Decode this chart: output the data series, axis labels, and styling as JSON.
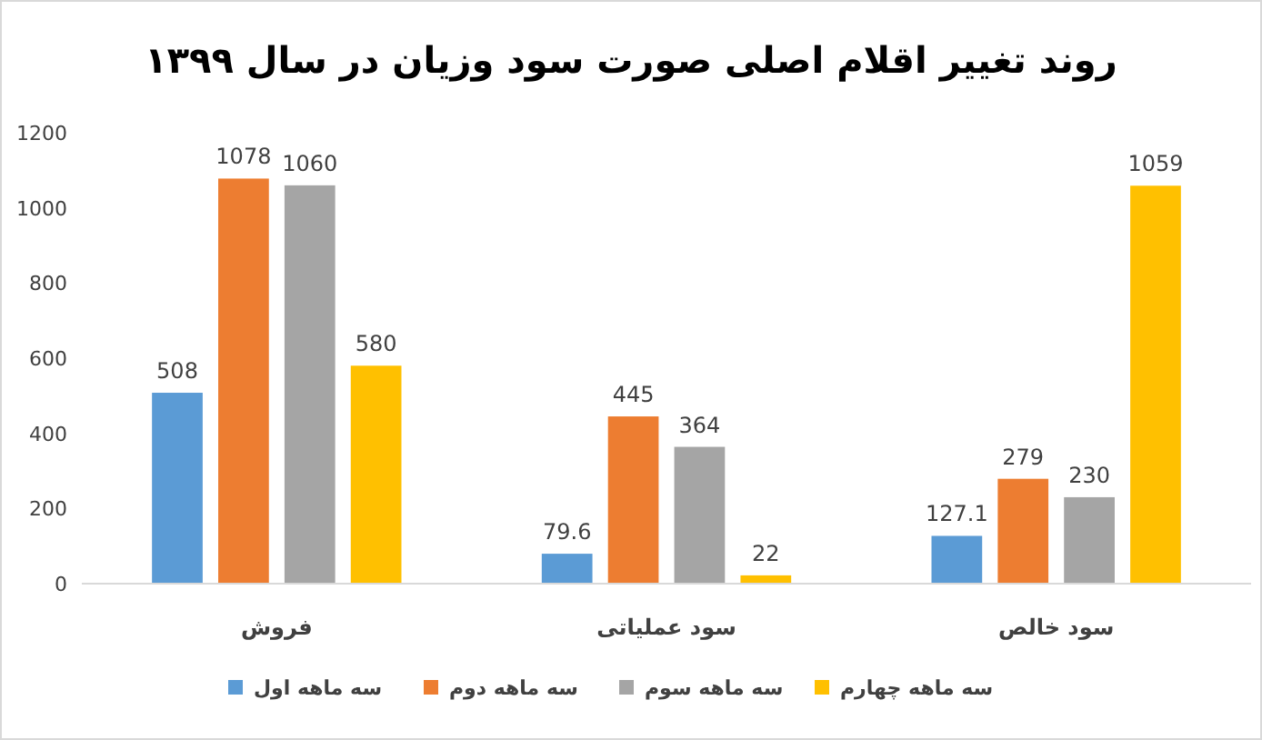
{
  "chart_data": {
    "type": "bar",
    "title": "روند تغییر اقلام اصلی صورت سود وزیان در سال ۱۳۹۹",
    "categories": [
      "فروش",
      "سود عملیاتی",
      "سود خالص"
    ],
    "series": [
      {
        "name": "سه ماهه اول",
        "color": "#5b9bd5",
        "values": [
          508,
          79.6,
          127.1
        ]
      },
      {
        "name": "سه ماهه دوم",
        "color": "#ed7d31",
        "values": [
          1078,
          445,
          279
        ]
      },
      {
        "name": "سه ماهه سوم",
        "color": "#a5a5a5",
        "values": [
          1060,
          364,
          230
        ]
      },
      {
        "name": "سه ماهه چهارم",
        "color": "#ffc000",
        "values": [
          580,
          22,
          1059
        ]
      }
    ],
    "ylim": [
      0,
      1200
    ],
    "yticks": [
      0,
      200,
      400,
      600,
      800,
      1000,
      1200
    ],
    "data_labels": true,
    "legend": "bottom",
    "grid": false
  }
}
